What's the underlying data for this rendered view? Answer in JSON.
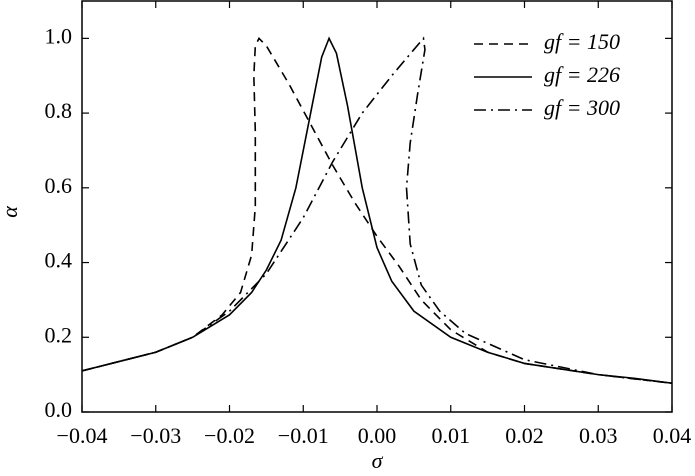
{
  "chart_data": {
    "type": "line",
    "x_label": "σ",
    "y_label": "α",
    "xlim": [
      -0.04,
      0.04
    ],
    "ylim": [
      0,
      1.1
    ],
    "xticks": [
      {
        "value": -0.04,
        "label": "−0.04"
      },
      {
        "value": -0.03,
        "label": "−0.03"
      },
      {
        "value": -0.02,
        "label": "−0.02"
      },
      {
        "value": -0.01,
        "label": "−0.01"
      },
      {
        "value": 0,
        "label": "0.00"
      },
      0.01,
      0.02,
      0.03,
      0.04
    ],
    "yticks": [
      {
        "value": 0,
        "label": "0.0"
      },
      0.2,
      0.4,
      0.6,
      0.8,
      {
        "value": 1,
        "label": "1.0"
      }
    ],
    "legend": "top-right",
    "series": [
      {
        "name": "gf = 150",
        "color": "#000000",
        "dash": "dashed",
        "x": [
          -0.04,
          -0.03,
          -0.025,
          -0.021,
          -0.0185,
          -0.017,
          -0.0165,
          -0.0165,
          -0.0167,
          -0.0165,
          -0.016,
          -0.015,
          -0.012,
          -0.009,
          -0.006,
          -0.003,
          0,
          0.003,
          0.006,
          0.01,
          0.015,
          0.02,
          0.03,
          0.04
        ],
        "values": [
          0.11,
          0.16,
          0.2,
          0.26,
          0.32,
          0.42,
          0.55,
          0.75,
          0.9,
          0.98,
          1.0,
          0.98,
          0.88,
          0.77,
          0.66,
          0.56,
          0.47,
          0.39,
          0.3,
          0.22,
          0.16,
          0.13,
          0.1,
          0.077
        ]
      },
      {
        "name": "gf = 226",
        "color": "#000000",
        "dash": "solid",
        "x": [
          -0.04,
          -0.035,
          -0.03,
          -0.025,
          -0.02,
          -0.017,
          -0.015,
          -0.013,
          -0.011,
          -0.009,
          -0.0075,
          -0.0065,
          -0.0055,
          -0.004,
          -0.002,
          0,
          0.002,
          0.005,
          0.01,
          0.015,
          0.02,
          0.025,
          0.03,
          0.035,
          0.04
        ],
        "values": [
          0.11,
          0.135,
          0.16,
          0.2,
          0.26,
          0.32,
          0.38,
          0.46,
          0.6,
          0.8,
          0.95,
          1.0,
          0.96,
          0.82,
          0.6,
          0.44,
          0.35,
          0.27,
          0.2,
          0.16,
          0.13,
          0.115,
          0.1,
          0.09,
          0.077
        ]
      },
      {
        "name": "gf = 300",
        "color": "#000000",
        "dash": "dashdot",
        "x": [
          -0.04,
          -0.03,
          -0.025,
          -0.02,
          -0.015,
          -0.01,
          -0.006,
          -0.002,
          0.002,
          0.005,
          0.0063,
          0.0065,
          0.0055,
          0.0045,
          0.004,
          0.0045,
          0.006,
          0.0085,
          0.012,
          0.02,
          0.03,
          0.04
        ],
        "values": [
          0.11,
          0.16,
          0.2,
          0.27,
          0.37,
          0.52,
          0.67,
          0.8,
          0.9,
          0.97,
          1.0,
          0.97,
          0.85,
          0.72,
          0.6,
          0.45,
          0.34,
          0.27,
          0.21,
          0.14,
          0.1,
          0.077
        ]
      }
    ]
  }
}
